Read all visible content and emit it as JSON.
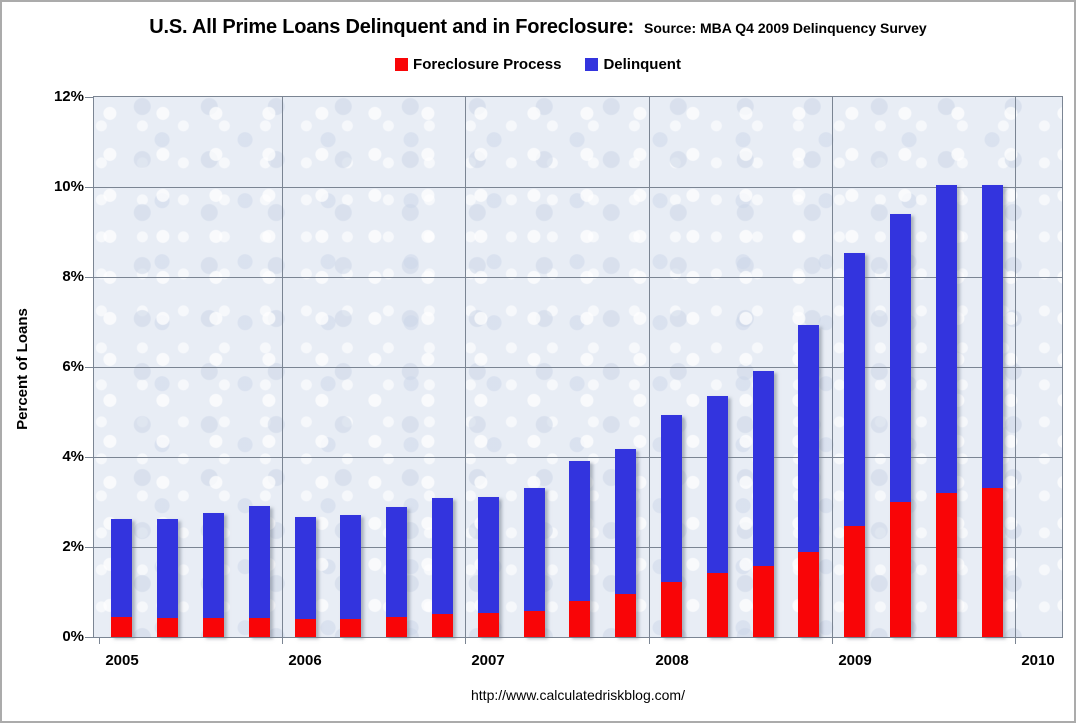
{
  "title": {
    "main": "U.S. All Prime Loans Delinquent and in Foreclosure:",
    "source": "Source: MBA Q4 2009 Delinquency Survey"
  },
  "legend": [
    {
      "label": "Foreclosure Process",
      "color": "#f90507"
    },
    {
      "label": "Delinquent",
      "color": "#3334de"
    }
  ],
  "footer": "http://www.calculatedriskblog.com/",
  "chart_data": {
    "type": "bar",
    "stacked": true,
    "title": "U.S. All Prime Loans Delinquent and in Foreclosure: Source: MBA Q4 2009 Delinquency Survey",
    "xlabel": "",
    "ylabel": "Percent of Loans",
    "ylim": [
      0,
      12
    ],
    "ytick_step": 2,
    "ytick_labels": [
      "0%",
      "2%",
      "4%",
      "6%",
      "8%",
      "10%",
      "12%"
    ],
    "xtick_labels": [
      "2005",
      "2006",
      "2007",
      "2008",
      "2009",
      "2010"
    ],
    "grid": true,
    "grid_color": "#7b8593",
    "plot_bg_color": "#e8edf5",
    "legend_position": "top",
    "categories": [
      "2005 Q1",
      "2005 Q2",
      "2005 Q3",
      "2005 Q4",
      "2006 Q1",
      "2006 Q2",
      "2006 Q3",
      "2006 Q4",
      "2007 Q1",
      "2007 Q2",
      "2007 Q3",
      "2007 Q4",
      "2008 Q1",
      "2008 Q2",
      "2008 Q3",
      "2008 Q4",
      "2009 Q1",
      "2009 Q2",
      "2009 Q3",
      "2009 Q4"
    ],
    "series": [
      {
        "name": "Foreclosure Process",
        "color": "#f90507",
        "values": [
          0.45,
          0.42,
          0.42,
          0.42,
          0.41,
          0.41,
          0.44,
          0.5,
          0.53,
          0.58,
          0.79,
          0.96,
          1.22,
          1.42,
          1.58,
          1.88,
          2.47,
          3.0,
          3.2,
          3.31
        ]
      },
      {
        "name": "Delinquent",
        "color": "#3334de",
        "values": [
          2.18,
          2.21,
          2.34,
          2.48,
          2.25,
          2.29,
          2.44,
          2.58,
          2.59,
          2.74,
          3.12,
          3.22,
          3.71,
          3.93,
          4.34,
          5.06,
          6.06,
          6.41,
          6.85,
          6.74
        ]
      }
    ],
    "totals": [
      2.63,
      2.63,
      2.76,
      2.9,
      2.66,
      2.7,
      2.88,
      3.08,
      3.12,
      3.32,
      3.91,
      4.18,
      4.93,
      5.35,
      5.92,
      6.94,
      8.53,
      9.41,
      10.05,
      10.05
    ]
  }
}
